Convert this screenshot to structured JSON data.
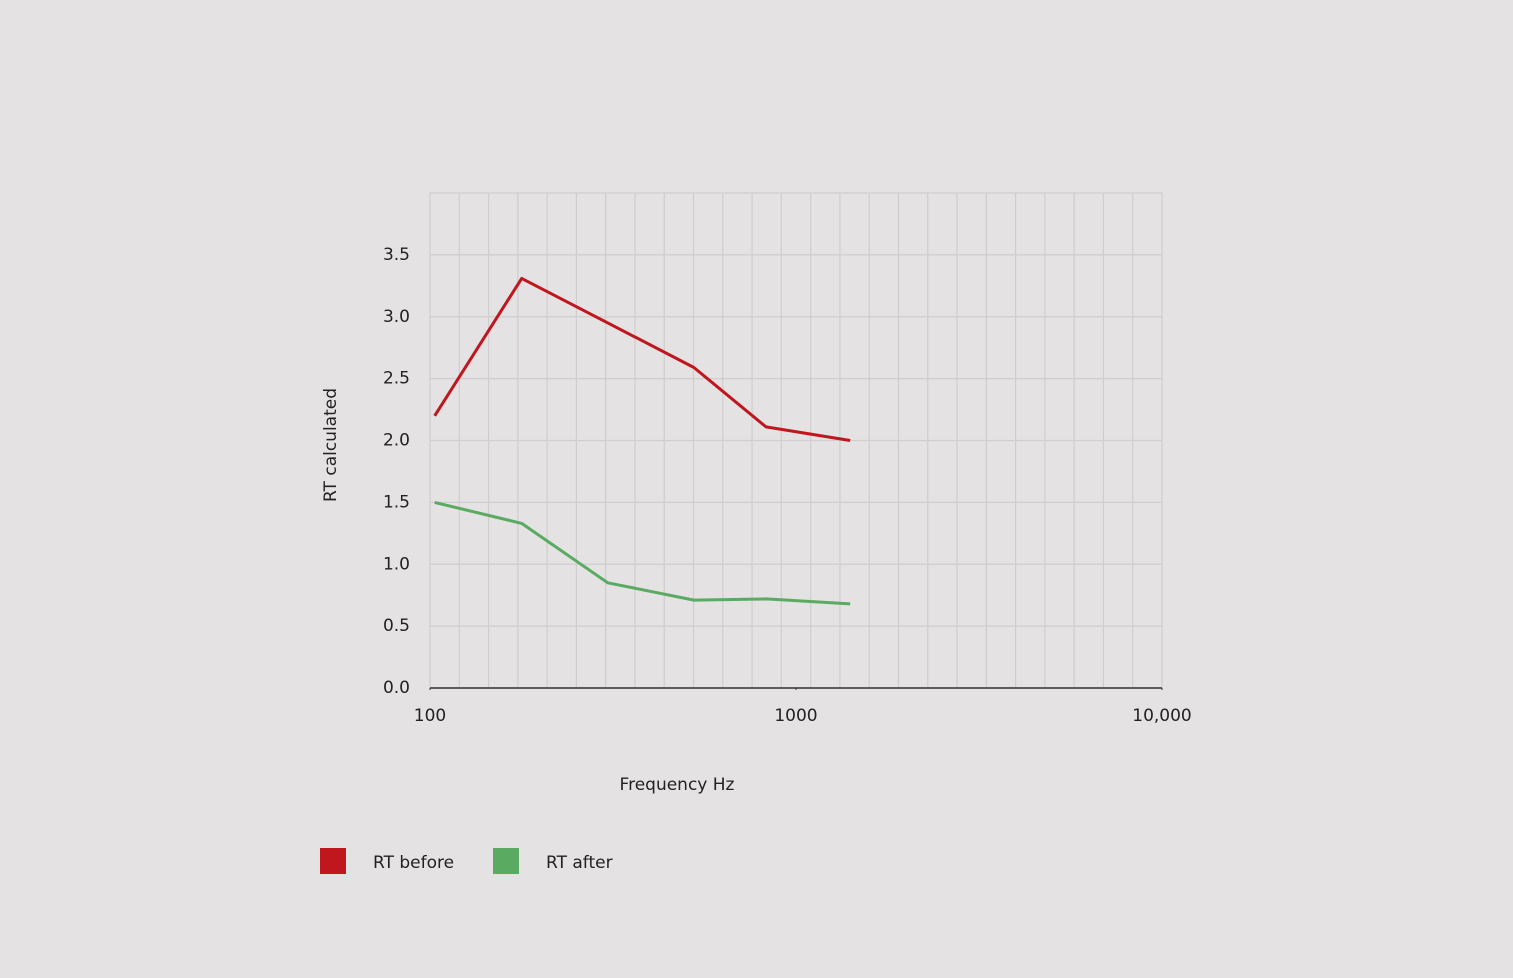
{
  "chart_data": {
    "type": "line",
    "x_label": "Frequency Hz",
    "y_label": "RT calculated",
    "x": [
      103,
      178,
      306,
      526,
      828,
      1406
    ],
    "xlim": [
      100,
      10000
    ],
    "xticks": [
      100,
      1000,
      {
        "value": 10000,
        "label": "10,000"
      }
    ],
    "xscale": "log",
    "ylim": [
      0,
      4
    ],
    "yticks": [
      {
        "value": 0,
        "label": "0.0"
      },
      0.5,
      {
        "value": 1,
        "label": "1.0"
      },
      1.5,
      {
        "value": 2,
        "label": "2.0"
      },
      2.5,
      {
        "value": 3,
        "label": "3.0"
      },
      3.5
    ],
    "grid": true,
    "legend": "bottom",
    "series": [
      {
        "name": "RT before",
        "color": "#c0161e",
        "values": [
          2.2,
          3.31,
          2.95,
          2.59,
          2.11,
          2.0
        ]
      },
      {
        "name": "RT after",
        "color": "#5aaa62",
        "values": [
          1.5,
          1.33,
          0.85,
          0.71,
          0.72,
          0.68
        ]
      }
    ]
  }
}
